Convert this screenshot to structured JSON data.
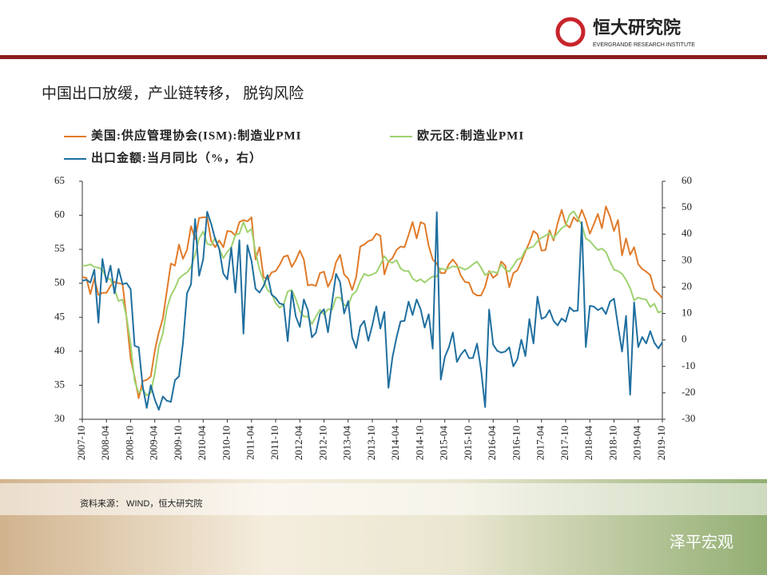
{
  "header": {
    "logo_cn": "恒大研究院",
    "logo_en": "EVERGRANDE RESEARCH INSTITUTE"
  },
  "slide_title": "中国出口放缓，产业链转移， 脱钩风险",
  "source": "资料来源： WIND，恒大研究院",
  "watermark": "泽平宏观",
  "chart_data": {
    "type": "line",
    "categories": [
      "2007-10",
      null,
      null,
      null,
      null,
      null,
      "2008-04",
      null,
      null,
      null,
      null,
      null,
      "2008-10",
      null,
      null,
      null,
      null,
      null,
      "2009-04",
      null,
      null,
      null,
      null,
      null,
      "2009-10",
      null,
      null,
      null,
      null,
      null,
      "2010-04",
      null,
      null,
      null,
      null,
      null,
      "2010-10",
      null,
      null,
      null,
      null,
      null,
      "2011-04",
      null,
      null,
      null,
      null,
      null,
      "2011-10",
      null,
      null,
      null,
      null,
      null,
      "2012-04",
      null,
      null,
      null,
      null,
      null,
      "2012-10",
      null,
      null,
      null,
      null,
      null,
      "2013-04",
      null,
      null,
      null,
      null,
      null,
      "2013-10",
      null,
      null,
      null,
      null,
      null,
      "2014-04",
      null,
      null,
      null,
      null,
      null,
      "2014-10",
      null,
      null,
      null,
      null,
      null,
      "2015-04",
      null,
      null,
      null,
      null,
      null,
      "2015-10",
      null,
      null,
      null,
      null,
      null,
      "2016-04",
      null,
      null,
      null,
      null,
      null,
      "2016-10",
      null,
      null,
      null,
      null,
      null,
      "2017-04",
      null,
      null,
      null,
      null,
      null,
      "2017-10",
      null,
      null,
      null,
      null,
      null,
      "2018-04",
      null,
      null,
      null,
      null,
      null,
      "2018-10",
      null,
      null,
      null,
      null,
      null,
      "2019-04",
      null,
      null,
      null,
      null,
      null,
      "2019-10"
    ],
    "series": [
      {
        "name": "美国:供应管理协会(ISM):制造业PMI",
        "color": "#e07b2a",
        "values": [
          50.9,
          50.8,
          48.4,
          50.7,
          48.3,
          48.6,
          48.6,
          49.6,
          50.2,
          50.0,
          49.9,
          44.8,
          38.9,
          36.2,
          33.1,
          35.6,
          35.8,
          36.3,
          40.1,
          42.8,
          44.8,
          48.9,
          52.9,
          52.6,
          55.7,
          53.6,
          54.9,
          58.4,
          56.5,
          59.6,
          59.7,
          59.7,
          56.2,
          55.3,
          56.3,
          55.3,
          57.7,
          57.6,
          57.0,
          59.0,
          59.3,
          59.1,
          59.7,
          53.5,
          55.3,
          50.9,
          50.6,
          51.6,
          51.8,
          52.7,
          53.9,
          54.1,
          52.4,
          53.4,
          54.8,
          53.5,
          49.7,
          49.8,
          49.6,
          51.5,
          51.7,
          49.5,
          50.7,
          53.1,
          54.2,
          51.3,
          50.7,
          49.0,
          50.9,
          55.4,
          55.7,
          56.2,
          56.4,
          57.3,
          57.0,
          51.3,
          53.2,
          53.7,
          54.9,
          55.4,
          55.3,
          57.1,
          59.0,
          56.6,
          59.0,
          58.7,
          55.5,
          53.5,
          52.9,
          51.5,
          51.5,
          52.8,
          53.5,
          52.7,
          51.1,
          50.2,
          50.1,
          48.6,
          48.2,
          48.2,
          49.5,
          51.8,
          50.8,
          51.3,
          53.2,
          52.6,
          49.4,
          51.5,
          51.9,
          53.2,
          54.7,
          56.0,
          57.7,
          57.2,
          54.8,
          54.9,
          57.8,
          56.3,
          58.8,
          60.8,
          58.7,
          58.2,
          59.7,
          59.1,
          60.8,
          59.3,
          57.3,
          58.7,
          60.2,
          58.1,
          61.3,
          59.8,
          57.7,
          59.3,
          54.1,
          56.6,
          54.2,
          55.3,
          52.8,
          52.1,
          51.7,
          51.2,
          49.1,
          48.5,
          47.8
        ]
      },
      {
        "name": "欧元区:制造业PMI",
        "color": "#9fd270",
        "values": [
          52.6,
          52.6,
          52.8,
          52.4,
          52.3,
          52.0,
          50.7,
          50.6,
          49.2,
          47.4,
          47.6,
          45.0,
          41.1,
          35.6,
          33.9,
          34.4,
          33.5,
          33.9,
          36.8,
          40.7,
          42.6,
          46.3,
          48.2,
          49.3,
          50.7,
          51.2,
          51.6,
          52.4,
          54.2,
          56.6,
          57.6,
          55.8,
          55.6,
          56.7,
          55.1,
          53.7,
          54.6,
          55.3,
          57.1,
          57.3,
          59.0,
          57.5,
          58.0,
          54.6,
          52.0,
          50.4,
          49.0,
          48.5,
          47.1,
          46.4,
          46.9,
          48.8,
          49.0,
          47.7,
          45.9,
          45.1,
          45.1,
          44.0,
          45.1,
          46.1,
          45.4,
          46.2,
          46.1,
          47.9,
          47.9,
          46.8,
          46.7,
          48.3,
          48.8,
          50.3,
          51.4,
          51.1,
          51.3,
          51.6,
          52.7,
          54.0,
          53.2,
          53.0,
          53.4,
          52.2,
          51.8,
          51.8,
          50.7,
          50.3,
          50.6,
          50.1,
          50.6,
          51.0,
          51.0,
          52.2,
          52.0,
          52.2,
          52.5,
          52.4,
          52.3,
          52.0,
          52.3,
          52.8,
          53.2,
          52.3,
          51.2,
          51.6,
          51.7,
          51.5,
          52.8,
          52.0,
          51.7,
          52.6,
          53.5,
          53.7,
          54.9,
          55.2,
          55.4,
          56.2,
          56.7,
          57.0,
          57.4,
          56.6,
          57.4,
          58.1,
          58.5,
          60.1,
          60.6,
          59.6,
          58.6,
          56.6,
          56.2,
          55.5,
          54.9,
          55.1,
          54.6,
          53.2,
          52.0,
          51.8,
          51.4,
          50.5,
          49.3,
          47.5,
          47.9,
          47.7,
          47.6,
          46.5,
          47.0,
          45.7,
          45.9
        ]
      },
      {
        "name": "出口金额:当月同比（%，右）",
        "color": "#1f6f9f",
        "axis": "y2",
        "values": [
          22.3,
          22.8,
          21.7,
          26.6,
          6.5,
          30.6,
          21.8,
          28.1,
          17.6,
          26.9,
          21.1,
          21.5,
          19.2,
          -2.2,
          -2.8,
          -17.5,
          -25.7,
          -17.1,
          -22.6,
          -26.4,
          -21.4,
          -23.0,
          -23.4,
          -15.2,
          -13.8,
          -1.2,
          17.7,
          21.0,
          45.7,
          24.3,
          30.5,
          48.5,
          43.9,
          38.1,
          34.4,
          25.1,
          22.9,
          34.9,
          17.9,
          37.7,
          2.4,
          35.8,
          29.9,
          19.4,
          17.9,
          20.4,
          24.5,
          17.1,
          15.9,
          13.8,
          13.4,
          -0.5,
          18.4,
          8.9,
          4.9,
          15.3,
          11.3,
          1.0,
          2.7,
          9.9,
          11.6,
          2.9,
          14.1,
          25.0,
          21.8,
          10.0,
          14.7,
          1.0,
          -3.1,
          5.1,
          7.2,
          -0.3,
          5.6,
          12.7,
          4.3,
          10.6,
          -18.1,
          -6.6,
          0.9,
          7.0,
          7.2,
          14.5,
          9.4,
          15.3,
          11.6,
          4.7,
          9.7,
          -3.3,
          48.3,
          -15.0,
          -6.4,
          -2.8,
          2.8,
          -8.3,
          -5.5,
          -3.7,
          -6.9,
          -6.8,
          -1.4,
          -11.2,
          -25.4,
          11.5,
          -1.8,
          -4.1,
          -4.8,
          -4.4,
          -2.8,
          -10.0,
          -7.3,
          0.1,
          -6.1,
          7.9,
          -1.3,
          16.4,
          8.0,
          8.7,
          11.3,
          7.2,
          5.5,
          8.1,
          6.9,
          12.3,
          10.9,
          11.1,
          44.5,
          -2.7,
          12.9,
          12.6,
          11.3,
          12.2,
          9.8,
          14.5,
          15.6,
          5.4,
          -4.4,
          9.1,
          -20.7,
          14.2,
          -2.7,
          1.1,
          -1.3,
          3.3,
          -1.0,
          -3.2,
          -0.9
        ]
      }
    ],
    "ylim": [
      30,
      65
    ],
    "yticks": [
      30,
      35,
      40,
      45,
      50,
      55,
      60,
      65
    ],
    "y2lim": [
      -30,
      60
    ],
    "y2ticks": [
      -30,
      -20,
      -10,
      0,
      10,
      20,
      30,
      40,
      50,
      60
    ],
    "grid": false
  }
}
